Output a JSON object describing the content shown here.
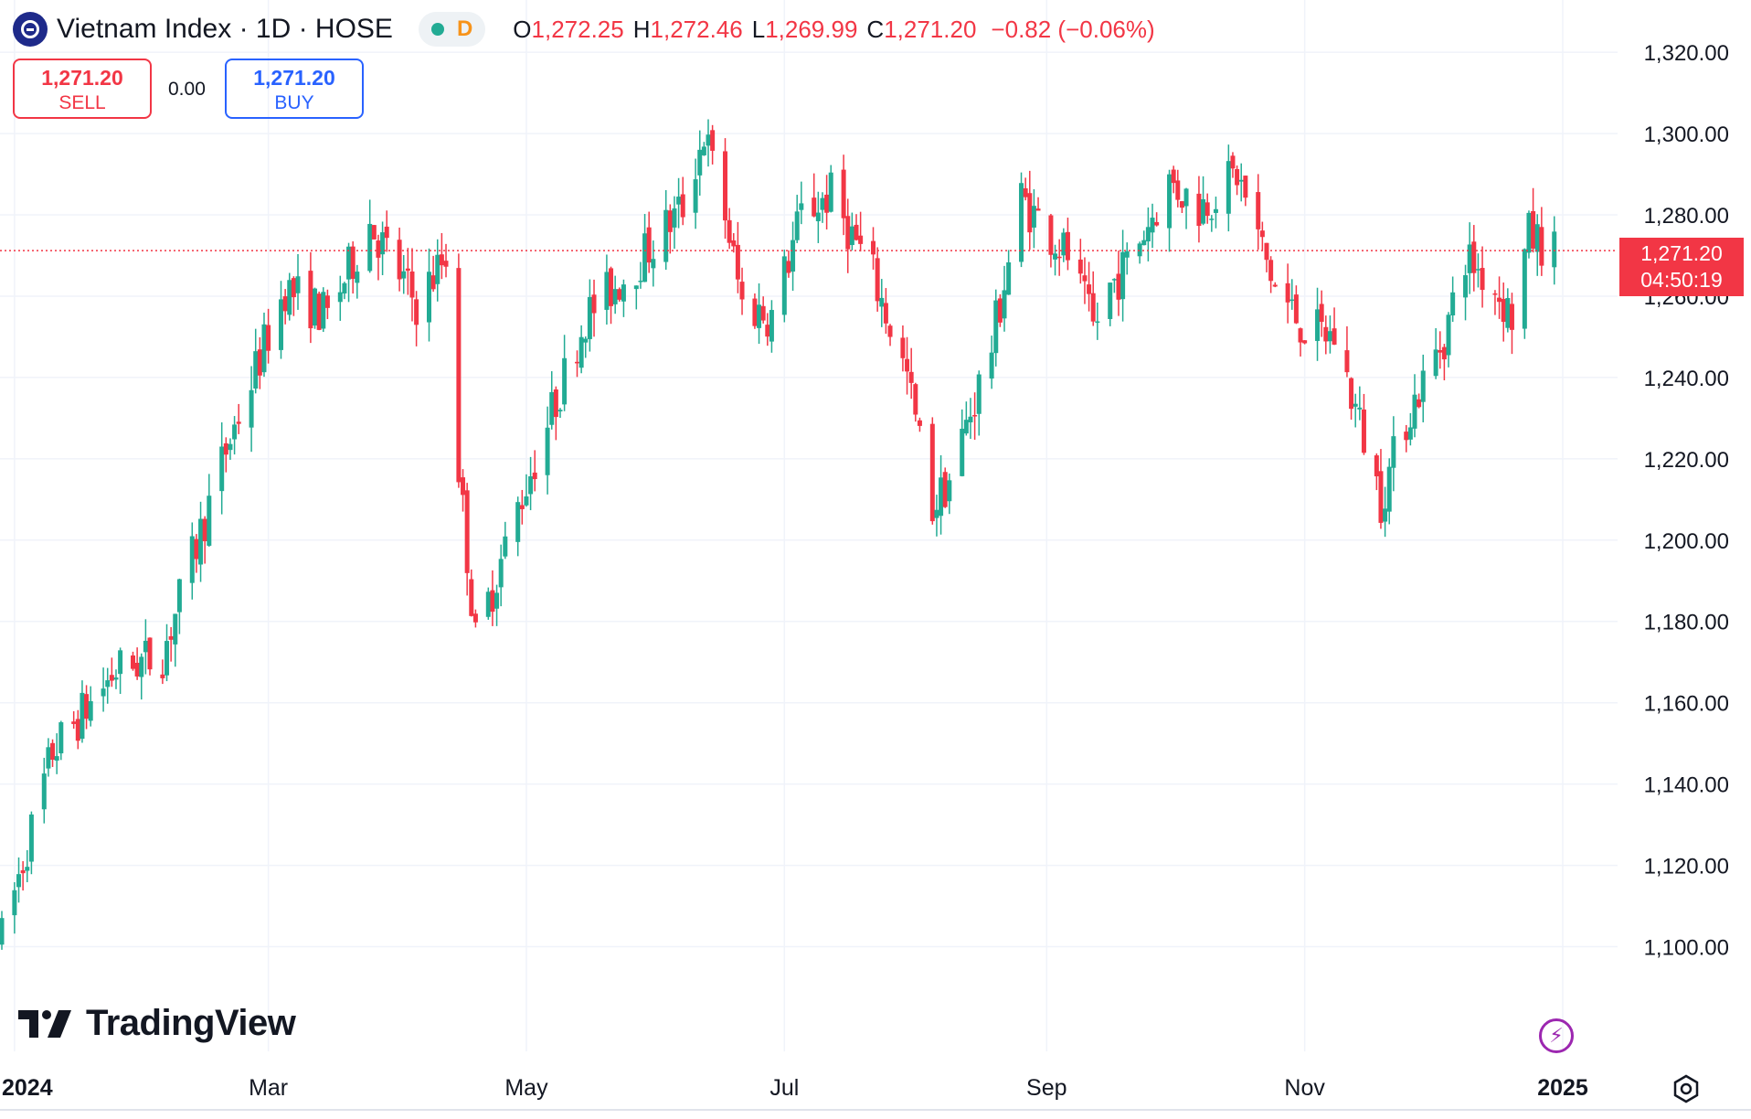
{
  "header": {
    "title": "Vietnam Index · 1D · HOSE",
    "interval_badge": "D",
    "ohlc": [
      {
        "key": "O",
        "value": "1,272.25"
      },
      {
        "key": "H",
        "value": "1,272.46"
      },
      {
        "key": "L",
        "value": "1,269.99"
      },
      {
        "key": "C",
        "value": "1,271.20"
      }
    ],
    "change": "−0.82 (−0.06%)"
  },
  "trade": {
    "sell_price": "1,271.20",
    "sell_label": "SELL",
    "spread": "0.00",
    "buy_price": "1,271.20",
    "buy_label": "BUY"
  },
  "last_price_badge": {
    "price": "1,271.20",
    "countdown": "04:50:19"
  },
  "branding": "TradingView",
  "colors": {
    "up": "#22ab94",
    "down": "#f23645",
    "buy": "#2962ff",
    "grid": "#f0f3fa"
  },
  "icons": [
    "indicator-bolt-icon",
    "settings-gear-icon",
    "tradingview-logo-icon",
    "index-logo-icon"
  ],
  "chart_data": {
    "type": "candlestick",
    "interval": "1D",
    "ylim": [
      1090,
      1327
    ],
    "y_ticks": [
      "1,320.00",
      "1,300.00",
      "1,280.00",
      "1,260.00",
      "1,240.00",
      "1,220.00",
      "1,200.00",
      "1,180.00",
      "1,160.00",
      "1,140.00",
      "1,120.00",
      "1,100.00"
    ],
    "y_tick_values": [
      1320,
      1300,
      1280,
      1260,
      1240,
      1220,
      1200,
      1180,
      1160,
      1140,
      1120,
      1100
    ],
    "x_labels": [
      "2024",
      "Mar",
      "May",
      "Jul",
      "Sep",
      "Nov",
      "2025"
    ],
    "x_label_dates": [
      "2024-01-01",
      "2024-03-01",
      "2024-05-01",
      "2024-07-01",
      "2024-09-01",
      "2024-11-01",
      "2025-01-01"
    ],
    "last_price": 1271.2,
    "last_price_line": "dotted",
    "trend": [
      [
        "2023-12-29",
        1102
      ],
      [
        "2024-01-10",
        1148
      ],
      [
        "2024-01-25",
        1168
      ],
      [
        "2024-02-05",
        1172
      ],
      [
        "2024-02-20",
        1222
      ],
      [
        "2024-03-05",
        1262
      ],
      [
        "2024-03-15",
        1255
      ],
      [
        "2024-03-25",
        1278
      ],
      [
        "2024-04-05",
        1258
      ],
      [
        "2024-04-12",
        1270
      ],
      [
        "2024-04-15",
        1218
      ],
      [
        "2024-04-19",
        1175
      ],
      [
        "2024-04-29",
        1208
      ],
      [
        "2024-05-15",
        1255
      ],
      [
        "2024-05-27",
        1268
      ],
      [
        "2024-06-07",
        1282
      ],
      [
        "2024-06-12",
        1300
      ],
      [
        "2024-06-17",
        1280
      ],
      [
        "2024-06-21",
        1258
      ],
      [
        "2024-06-28",
        1255
      ],
      [
        "2024-07-05",
        1280
      ],
      [
        "2024-07-12",
        1285
      ],
      [
        "2024-07-22",
        1265
      ],
      [
        "2024-07-30",
        1240
      ],
      [
        "2024-08-05",
        1208
      ],
      [
        "2024-08-09",
        1215
      ],
      [
        "2024-08-19",
        1248
      ],
      [
        "2024-08-26",
        1284
      ],
      [
        "2024-09-06",
        1270
      ],
      [
        "2024-09-12",
        1252
      ],
      [
        "2024-09-16",
        1262
      ],
      [
        "2024-09-20",
        1268
      ],
      [
        "2024-09-30",
        1288
      ],
      [
        "2024-10-07",
        1282
      ],
      [
        "2024-10-16",
        1290
      ],
      [
        "2024-10-25",
        1262
      ],
      [
        "2024-11-01",
        1252
      ],
      [
        "2024-11-08",
        1250
      ],
      [
        "2024-11-15",
        1225
      ],
      [
        "2024-11-19",
        1210
      ],
      [
        "2024-11-25",
        1230
      ],
      [
        "2024-12-04",
        1250
      ],
      [
        "2024-12-09",
        1270
      ],
      [
        "2024-12-16",
        1262
      ],
      [
        "2024-12-20",
        1255
      ],
      [
        "2024-12-24",
        1275
      ],
      [
        "2024-12-30",
        1271
      ]
    ]
  }
}
